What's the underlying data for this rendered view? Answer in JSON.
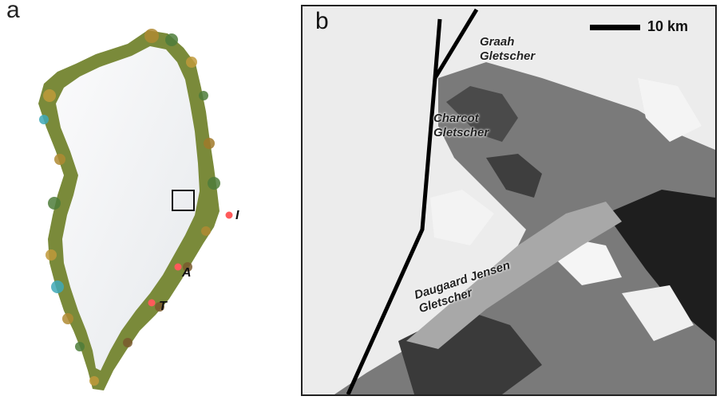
{
  "panel_a": {
    "label": "a",
    "sites": [
      {
        "label": "I",
        "color": "#ff5a5a"
      },
      {
        "label": "A",
        "color": "#ff5a5a"
      },
      {
        "label": "T",
        "color": "#ff5a5a"
      }
    ]
  },
  "panel_b": {
    "label": "b",
    "scale_bar": "10 km",
    "glaciers": [
      {
        "name": "Graah",
        "sub": "Gletscher"
      },
      {
        "name": "Charcot",
        "sub": "Gletscher"
      },
      {
        "name": "Daugaard Jensen",
        "sub": "Gletscher"
      }
    ]
  },
  "colors": {
    "ice": "#f2f4f6",
    "land_green": "#8aa24a",
    "land_brown": "#7a5b2e",
    "water_blue": "#3fa9b8",
    "site_marker": "#ff5a5a"
  }
}
